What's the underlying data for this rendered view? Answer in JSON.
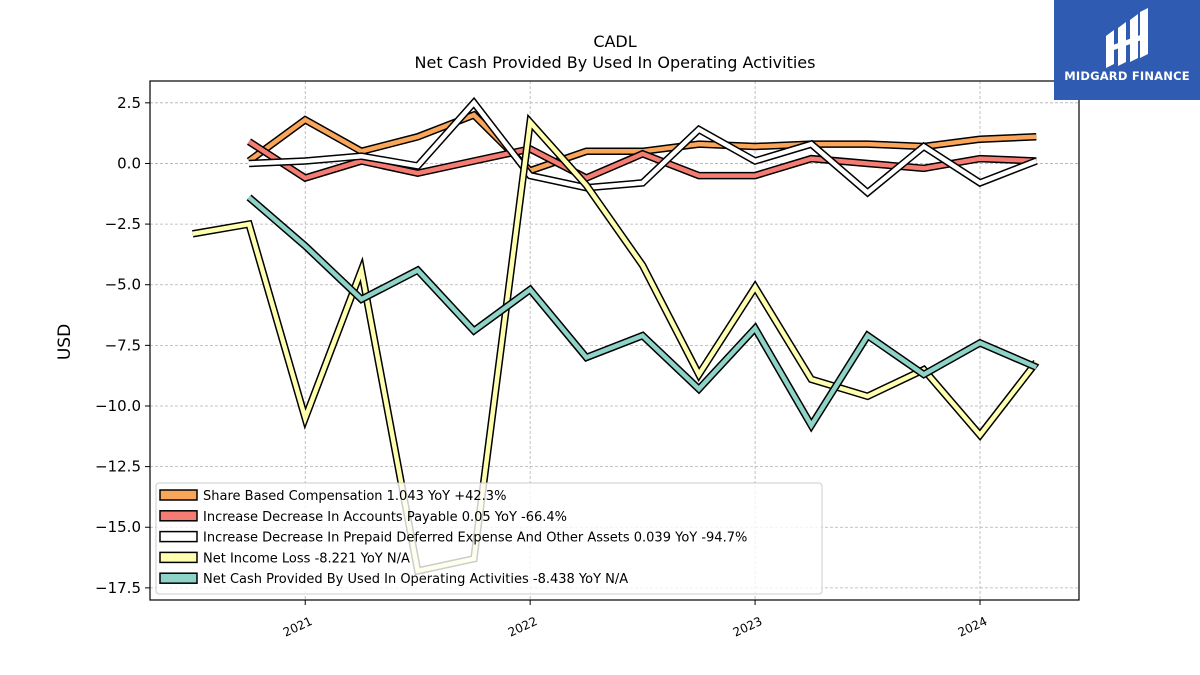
{
  "chart_data": {
    "type": "line",
    "title": "CADL",
    "subtitle": "Net Cash Provided By Used In Operating Activities",
    "xlabel": "",
    "ylabel": "USD",
    "ylim": [
      -18.0,
      3.4
    ],
    "xlim": [
      2020.31,
      2024.44
    ],
    "yticks": [
      2.5,
      0.0,
      -2.5,
      -5.0,
      -7.5,
      -10.0,
      -12.5,
      -15.0,
      -17.5
    ],
    "ytick_labels": [
      "2.5",
      "0.0",
      "−2.5",
      "−5.0",
      "−7.5",
      "−10.0",
      "−12.5",
      "−15.0",
      "−17.5"
    ],
    "xticks": [
      2021,
      2022,
      2023,
      2024
    ],
    "xtick_labels": [
      "2021",
      "2022",
      "2023",
      "2024"
    ],
    "grid": true,
    "legend_position": "lower-left",
    "x": [
      2020.5,
      2020.75,
      2021.0,
      2021.25,
      2021.5,
      2021.75,
      2022.0,
      2022.25,
      2022.5,
      2022.75,
      2023.0,
      2023.25,
      2023.5,
      2023.75,
      2024.0,
      2024.25
    ],
    "series": [
      {
        "name": "Share Based Compensation",
        "legend": "Share Based Compensation  1.043 YoY +42.3%",
        "color": "#f9a65a",
        "values": [
          null,
          0.1,
          1.8,
          0.5,
          1.1,
          2.0,
          -0.3,
          0.5,
          0.5,
          0.8,
          0.7,
          0.8,
          0.8,
          0.7,
          1.0,
          1.1
        ]
      },
      {
        "name": "Increase Decrease In Accounts Payable",
        "legend": "Increase Decrease In Accounts Payable  0.05 YoY -66.4%",
        "color": "#f47c72",
        "values": [
          null,
          0.9,
          -0.6,
          0.1,
          -0.4,
          0.1,
          0.6,
          -0.6,
          0.4,
          -0.5,
          -0.5,
          0.2,
          0.0,
          -0.2,
          0.2,
          0.1
        ]
      },
      {
        "name": "Increase Decrease In Prepaid Deferred Expense And Other Assets",
        "legend": "Increase Decrease In Prepaid Deferred Expense And Other Assets  0.039 YoY -94.7%",
        "color": "#ffffff",
        "values": [
          null,
          0.0,
          0.1,
          0.3,
          -0.1,
          2.5,
          -0.5,
          -1.0,
          -0.8,
          1.4,
          0.1,
          0.8,
          -1.2,
          0.7,
          -0.8,
          0.1
        ]
      },
      {
        "name": "Net Income Loss",
        "legend": "Net Income Loss  -8.221 YoY N/A",
        "color": "#ffffb0",
        "values": [
          -2.9,
          -2.5,
          -10.5,
          -4.4,
          -16.8,
          -16.3,
          1.7,
          -0.9,
          -4.2,
          -8.7,
          -5.1,
          -8.9,
          -9.6,
          -8.5,
          -11.2,
          -8.2
        ]
      },
      {
        "name": "Net Cash Provided By Used In Operating Activities",
        "legend": "Net Cash Provided By Used In Operating Activities  -8.438 YoY N/A",
        "color": "#8dd3c7",
        "values": [
          null,
          -1.4,
          -3.4,
          -5.6,
          -4.4,
          -6.9,
          -5.2,
          -8.0,
          -7.1,
          -9.3,
          -6.8,
          -10.8,
          -7.1,
          -8.7,
          -7.4,
          -8.4
        ]
      }
    ]
  },
  "logo": {
    "text": "MIDGARD FINANCE"
  }
}
